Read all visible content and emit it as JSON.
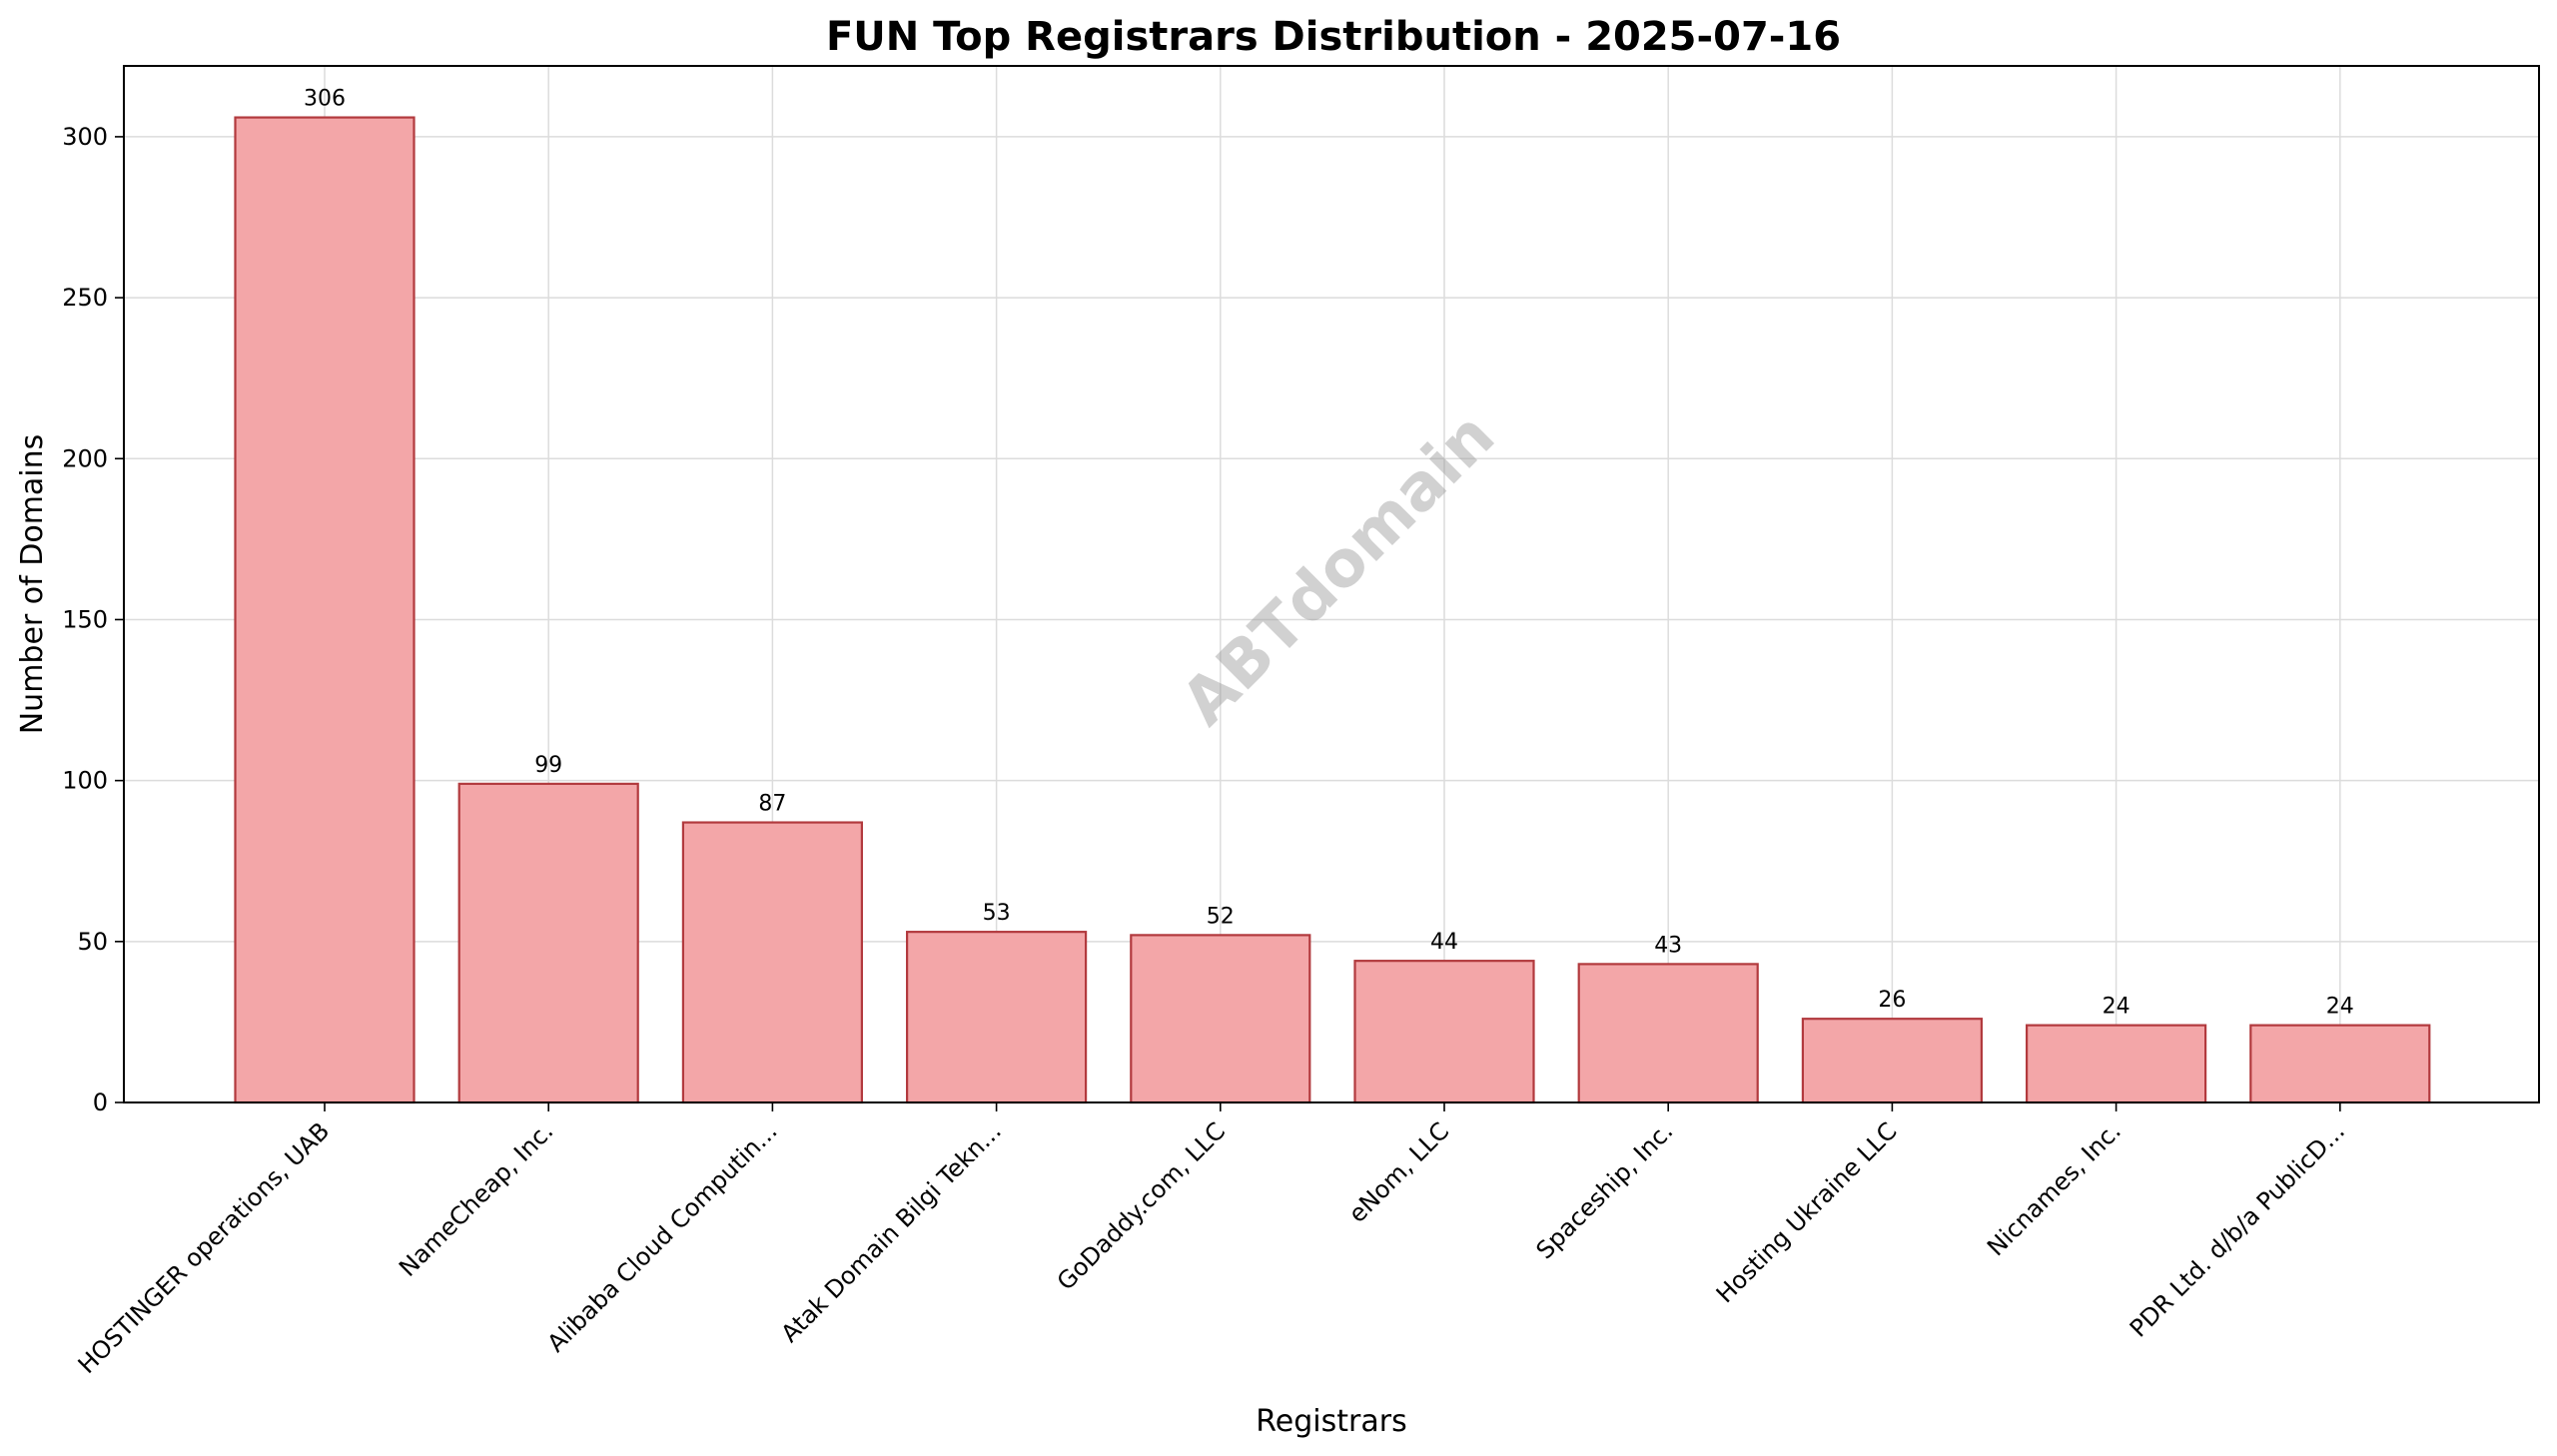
{
  "chart_data": {
    "type": "bar",
    "title": "FUN Top Registrars Distribution - 2025-07-16",
    "xlabel": "Registrars",
    "ylabel": "Number of Domains",
    "watermark": "ABTdomain",
    "categories": [
      "HOSTINGER operations, UAB",
      "NameCheap, Inc.",
      "Alibaba Cloud Computin...",
      "Atak Domain Bilgi Tekn...",
      "GoDaddy.com, LLC",
      "eNom, LLC",
      "Spaceship, Inc.",
      "Hosting Ukraine LLC",
      "Nicnames, Inc.",
      "PDR Ltd. d/b/a PublicD..."
    ],
    "values": [
      306,
      99,
      87,
      53,
      52,
      44,
      43,
      26,
      24,
      24
    ],
    "ylim": [
      0,
      322
    ],
    "yticks": [
      0,
      50,
      100,
      150,
      200,
      250,
      300
    ],
    "grid": true,
    "bar_color": "#f3a6a8",
    "bar_edge_color": "#b23a3e"
  }
}
